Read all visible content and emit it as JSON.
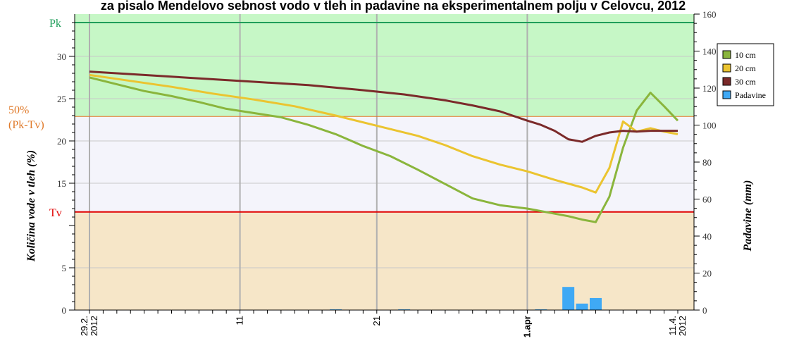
{
  "chart_data": {
    "type": "line",
    "title": "",
    "title_visible_fragment": "za pisalo Mendelovo sebnost vodo v tleh in padavine na eksperimentalnem polju v Celovcu, 2012",
    "x_tick_labels": [
      {
        "x": 0,
        "label": "29.2.\n2012",
        "bold": false
      },
      {
        "x": 11,
        "label": "11",
        "bold": false
      },
      {
        "x": 21,
        "label": "21",
        "bold": false
      },
      {
        "x": 32,
        "label": "1.apr",
        "bold": true
      },
      {
        "x": 43,
        "label": "11.4.\n2012",
        "bold": false
      }
    ],
    "y_left": {
      "label": "Količina vode v tleh (%)",
      "ylim": [
        0,
        34
      ],
      "ticks": [
        0,
        5,
        15,
        20,
        25,
        30
      ]
    },
    "y_right": {
      "label": "Padavine (mm)",
      "ylim": [
        0,
        160
      ],
      "ticks": [
        0,
        20,
        40,
        60,
        80,
        100,
        120,
        140,
        160
      ]
    },
    "zones": [
      {
        "name": "Pk",
        "value": 34,
        "color": "#1f9e5a"
      },
      {
        "name": "50% (Pk-Tv)",
        "value": 22.9,
        "color": "#e07a2a"
      },
      {
        "name": "Tv",
        "value": 11.6,
        "color": "#e00000"
      }
    ],
    "x_range": [
      0,
      43
    ],
    "series": [
      {
        "name": "10 cm",
        "color": "#8ab53c",
        "axis": "left",
        "points": [
          [
            0,
            27.5
          ],
          [
            2,
            26.7
          ],
          [
            4,
            25.9
          ],
          [
            6,
            25.3
          ],
          [
            8,
            24.6
          ],
          [
            10,
            23.8
          ],
          [
            12,
            23.3
          ],
          [
            14,
            22.8
          ],
          [
            16,
            21.9
          ],
          [
            18,
            20.8
          ],
          [
            19,
            20.1
          ],
          [
            20,
            19.4
          ],
          [
            21,
            18.8
          ],
          [
            22,
            18.2
          ],
          [
            24,
            16.6
          ],
          [
            26,
            14.9
          ],
          [
            28,
            13.2
          ],
          [
            30,
            12.4
          ],
          [
            32,
            12.0
          ],
          [
            34,
            11.4
          ],
          [
            35,
            11.1
          ],
          [
            36,
            10.7
          ],
          [
            37,
            10.4
          ],
          [
            38,
            13.4
          ],
          [
            39,
            19.2
          ],
          [
            40,
            23.6
          ],
          [
            41,
            25.7
          ],
          [
            42,
            24.1
          ],
          [
            43,
            22.4
          ]
        ]
      },
      {
        "name": "20 cm",
        "color": "#ebc430",
        "axis": "left",
        "points": [
          [
            0,
            27.8
          ],
          [
            3,
            27.1
          ],
          [
            6,
            26.4
          ],
          [
            9,
            25.6
          ],
          [
            12,
            24.9
          ],
          [
            15,
            24.1
          ],
          [
            18,
            23.0
          ],
          [
            21,
            21.8
          ],
          [
            24,
            20.6
          ],
          [
            26,
            19.5
          ],
          [
            28,
            18.2
          ],
          [
            30,
            17.2
          ],
          [
            32,
            16.4
          ],
          [
            34,
            15.4
          ],
          [
            36,
            14.5
          ],
          [
            37,
            13.9
          ],
          [
            38,
            16.8
          ],
          [
            39,
            22.3
          ],
          [
            40,
            21.1
          ],
          [
            41,
            21.5
          ],
          [
            42,
            21.1
          ],
          [
            43,
            20.8
          ]
        ]
      },
      {
        "name": "30 cm",
        "color": "#7b2a2a",
        "axis": "left",
        "points": [
          [
            0,
            28.2
          ],
          [
            4,
            27.8
          ],
          [
            8,
            27.4
          ],
          [
            12,
            27.0
          ],
          [
            16,
            26.6
          ],
          [
            20,
            26.0
          ],
          [
            23,
            25.5
          ],
          [
            26,
            24.8
          ],
          [
            28,
            24.2
          ],
          [
            30,
            23.5
          ],
          [
            32,
            22.4
          ],
          [
            33,
            21.9
          ],
          [
            34,
            21.2
          ],
          [
            35,
            20.2
          ],
          [
            36,
            19.9
          ],
          [
            37,
            20.6
          ],
          [
            38,
            21.0
          ],
          [
            39,
            21.2
          ],
          [
            40,
            21.1
          ],
          [
            41,
            21.2
          ],
          [
            42,
            21.2
          ],
          [
            43,
            21.2
          ]
        ]
      }
    ],
    "precipitation": {
      "name": "Padavine",
      "color": "#3fa9f5",
      "axis": "right",
      "bars": [
        [
          18,
          0.4
        ],
        [
          23,
          0.4
        ],
        [
          33,
          0.4
        ],
        [
          35,
          12.5
        ],
        [
          36,
          3.5
        ],
        [
          37,
          6.5
        ]
      ]
    },
    "legend": {
      "placement": "right",
      "items": [
        {
          "label": "10 cm",
          "color": "#8ab53c"
        },
        {
          "label": "20 cm",
          "color": "#ebc430"
        },
        {
          "label": "30 cm",
          "color": "#7b2a2a"
        },
        {
          "label": "Padavine",
          "color": "#3fa9f5"
        }
      ]
    },
    "background_colors": {
      "top": "#c6f7c6",
      "middle": "#f4f4fb",
      "bottom": "#f6e6c8"
    }
  }
}
